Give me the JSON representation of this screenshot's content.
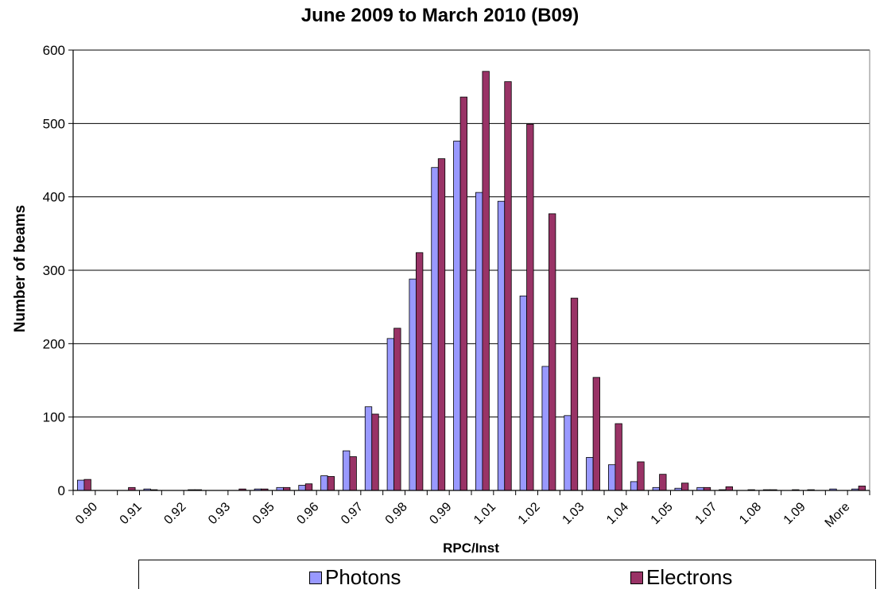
{
  "chart_data": {
    "type": "bar",
    "title": "June 2009 to March 2010 (B09)",
    "xlabel": "RPC/Inst",
    "ylabel": "Number of beams",
    "ylim": [
      0,
      600
    ],
    "yticks": [
      0,
      100,
      200,
      300,
      400,
      500,
      600
    ],
    "grid": "horizontal",
    "legend_position": "bottom",
    "tick_labels": [
      "0.90",
      "0.91",
      "0.92",
      "0.93",
      "0.95",
      "0.96",
      "0.97",
      "0.98",
      "0.99",
      "1.01",
      "1.02",
      "1.03",
      "1.04",
      "1.05",
      "1.07",
      "1.08",
      "1.09",
      "More"
    ],
    "categories": [
      "0.90",
      "",
      "0.91",
      "",
      "0.92",
      "",
      "0.93",
      "",
      "0.95",
      "",
      "0.96",
      "",
      "0.97",
      "",
      "0.98",
      "",
      "0.99",
      "",
      "1.01",
      "",
      "1.02",
      "",
      "1.03",
      "",
      "1.04",
      "",
      "1.05",
      "",
      "1.07",
      "",
      "1.08",
      "",
      "1.09",
      "",
      "More",
      ""
    ],
    "series": [
      {
        "name": "Photons",
        "color": "#9999ff",
        "values": [
          14,
          0,
          0,
          2,
          0,
          1,
          0,
          0,
          2,
          4,
          7,
          20,
          54,
          114,
          207,
          288,
          440,
          476,
          406,
          394,
          265,
          169,
          102,
          45,
          35,
          12,
          4,
          3,
          4,
          1,
          0,
          1,
          0,
          1,
          2,
          2
        ]
      },
      {
        "name": "Electrons",
        "color": "#993366",
        "values": [
          15,
          0,
          4,
          1,
          0,
          1,
          0,
          2,
          2,
          4,
          9,
          19,
          46,
          104,
          221,
          324,
          452,
          536,
          571,
          557,
          499,
          377,
          262,
          154,
          91,
          39,
          22,
          10,
          4,
          5,
          1,
          1,
          1,
          0,
          0,
          6
        ]
      }
    ]
  }
}
